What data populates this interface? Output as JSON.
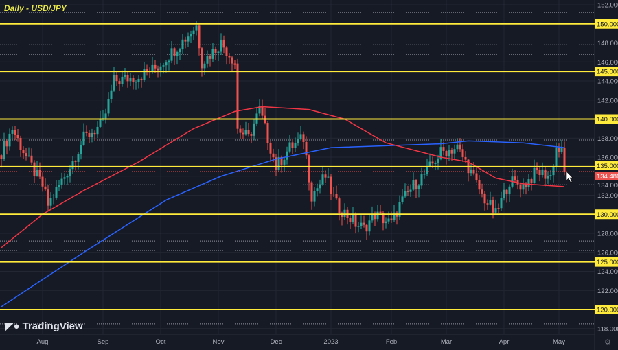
{
  "chart_data": {
    "type": "candlestick",
    "title": "Daily - USD/JPY",
    "ylim": [
      117,
      152.5
    ],
    "yticks": [
      152,
      150,
      148,
      146,
      144,
      142,
      140,
      138,
      136,
      134,
      132,
      130,
      128,
      126,
      124,
      122,
      120,
      118
    ],
    "xticks": [
      {
        "label": "Aug",
        "bar": 15
      },
      {
        "label": "Sep",
        "bar": 37
      },
      {
        "label": "Oct",
        "bar": 58
      },
      {
        "label": "Nov",
        "bar": 79
      },
      {
        "label": "Dec",
        "bar": 100
      },
      {
        "label": "2023",
        "bar": 120
      },
      {
        "label": "Feb",
        "bar": 142
      },
      {
        "label": "Mar",
        "bar": 162
      },
      {
        "label": "Apr",
        "bar": 183
      },
      {
        "label": "May",
        "bar": 203
      }
    ],
    "bars": 206,
    "close_path": [
      [
        0,
        136.5
      ],
      [
        4,
        139
      ],
      [
        10,
        135.5
      ],
      [
        15,
        133
      ],
      [
        17,
        131
      ],
      [
        25,
        135
      ],
      [
        30,
        138
      ],
      [
        37,
        139.5
      ],
      [
        41,
        144
      ],
      [
        50,
        144.5
      ],
      [
        57,
        145.5
      ],
      [
        67,
        148.5
      ],
      [
        71,
        149.8
      ],
      [
        73,
        146
      ],
      [
        75,
        146.5
      ],
      [
        80,
        148
      ],
      [
        85,
        146
      ],
      [
        86,
        139
      ],
      [
        90,
        138
      ],
      [
        94,
        141
      ],
      [
        100,
        135
      ],
      [
        105,
        137
      ],
      [
        110,
        138
      ],
      [
        113,
        132
      ],
      [
        118,
        134
      ],
      [
        122,
        131
      ],
      [
        129,
        129
      ],
      [
        132,
        128.5
      ],
      [
        136,
        130
      ],
      [
        142,
        129
      ],
      [
        145,
        131
      ],
      [
        150,
        133
      ],
      [
        155,
        134.5
      ],
      [
        160,
        136.5
      ],
      [
        166,
        137
      ],
      [
        170,
        135
      ],
      [
        175,
        132
      ],
      [
        180,
        130
      ],
      [
        185,
        133.5
      ],
      [
        190,
        133
      ],
      [
        195,
        134.5
      ],
      [
        200,
        134
      ],
      [
        202,
        137
      ],
      [
        204,
        136.5
      ],
      [
        205,
        134.486
      ]
    ],
    "ma_blue": [
      [
        0,
        120.3
      ],
      [
        30,
        126
      ],
      [
        60,
        131.5
      ],
      [
        80,
        134
      ],
      [
        100,
        135.8
      ],
      [
        120,
        137
      ],
      [
        140,
        137.2
      ],
      [
        160,
        137.4
      ],
      [
        170,
        137.7
      ],
      [
        190,
        137.5
      ],
      [
        205,
        137
      ]
    ],
    "ma_red": [
      [
        0,
        126.5
      ],
      [
        15,
        130
      ],
      [
        30,
        132.5
      ],
      [
        50,
        135.5
      ],
      [
        70,
        139
      ],
      [
        85,
        140.8
      ],
      [
        95,
        141.3
      ],
      [
        112,
        141
      ],
      [
        125,
        140
      ],
      [
        140,
        137.5
      ],
      [
        160,
        136
      ],
      [
        170,
        135.5
      ],
      [
        180,
        133.8
      ],
      [
        190,
        133.2
      ],
      [
        205,
        132.9
      ]
    ],
    "levels": [
      150,
      145,
      140,
      135,
      130,
      125,
      120
    ],
    "dotted": [
      151.2,
      147.8,
      146.8,
      137.8,
      133.1,
      131.5,
      127.2,
      126.2,
      118.5
    ],
    "level_label": "135.000",
    "last_price": "134.486",
    "level_labels": [
      "150.000",
      "145.000",
      "140.000",
      "130.000",
      "125.000",
      "120.000"
    ]
  },
  "brand": "TradingView",
  "colors": {
    "up": "#26a69a",
    "down": "#ef5350",
    "level": "#ffeb3b",
    "ma_blue": "#2962ff",
    "ma_red": "#f23645"
  }
}
